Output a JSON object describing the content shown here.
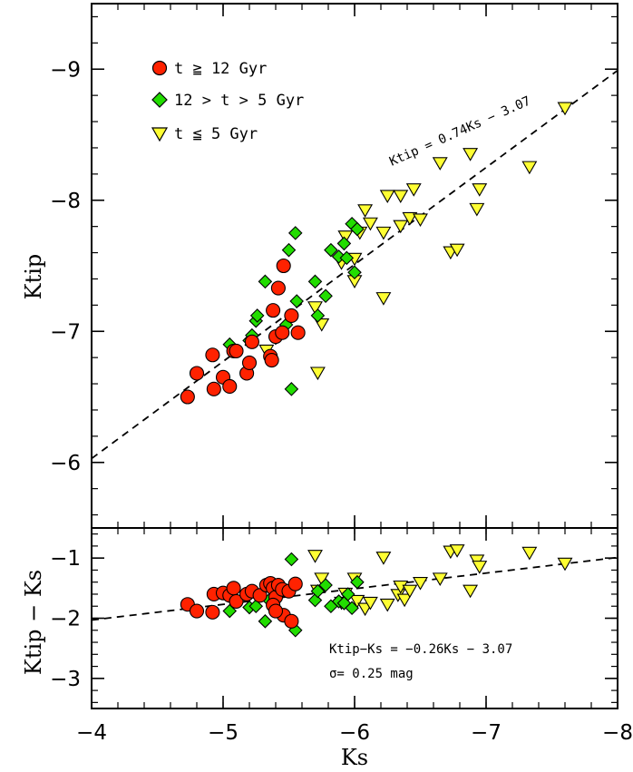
{
  "chart_data": [
    {
      "type": "scatter",
      "panel": "top",
      "xlabel": "",
      "ylabel": "Ktip",
      "xlim": [
        -4,
        -8
      ],
      "ylim": [
        -5.5,
        -9.5
      ],
      "xticks": [
        "−4",
        "−5",
        "−6",
        "−7",
        "−8"
      ],
      "yticks": [
        "−6",
        "−7",
        "−8",
        "−9"
      ],
      "ytick_values": [
        -6,
        -7,
        -8,
        -9
      ],
      "legend_position": "top-left",
      "legend": [
        {
          "label": "t ≧ 12 Gyr",
          "marker": "circle",
          "color": "#ff2200"
        },
        {
          "label": "12 > t > 5 Gyr",
          "marker": "diamond",
          "color": "#22dd00"
        },
        {
          "label": "t ≦ 5 Gyr",
          "marker": "triangle-down",
          "color": "#ffff33"
        }
      ],
      "fit_line": {
        "slope": 0.74,
        "intercept": -3.07,
        "label": "Ktip = 0.74Ks − 3.07"
      },
      "series": [
        {
          "name": "t ≧ 12 Gyr",
          "points": [
            [
              -4.73,
              -6.5
            ],
            [
              -4.8,
              -6.68
            ],
            [
              -4.92,
              -6.82
            ],
            [
              -4.93,
              -6.56
            ],
            [
              -5.0,
              -6.65
            ],
            [
              -5.05,
              -6.58
            ],
            [
              -5.08,
              -6.85
            ],
            [
              -5.1,
              -6.85
            ],
            [
              -5.18,
              -6.68
            ],
            [
              -5.2,
              -6.76
            ],
            [
              -5.22,
              -6.92
            ],
            [
              -5.36,
              -6.81
            ],
            [
              -5.37,
              -6.78
            ],
            [
              -5.38,
              -7.16
            ],
            [
              -5.4,
              -6.96
            ],
            [
              -5.42,
              -7.33
            ],
            [
              -5.45,
              -6.99
            ],
            [
              -5.46,
              -7.5
            ],
            [
              -5.52,
              -7.12
            ],
            [
              -5.57,
              -6.99
            ]
          ]
        },
        {
          "name": "12 > t > 5 Gyr",
          "points": [
            [
              -5.05,
              -6.9
            ],
            [
              -5.2,
              -6.93
            ],
            [
              -5.22,
              -6.97
            ],
            [
              -5.25,
              -7.08
            ],
            [
              -5.26,
              -7.12
            ],
            [
              -5.32,
              -7.38
            ],
            [
              -5.4,
              -6.95
            ],
            [
              -5.48,
              -7.05
            ],
            [
              -5.5,
              -7.62
            ],
            [
              -5.52,
              -6.56
            ],
            [
              -5.55,
              -7.75
            ],
            [
              -5.56,
              -7.23
            ],
            [
              -5.7,
              -7.38
            ],
            [
              -5.72,
              -7.12
            ],
            [
              -5.78,
              -7.27
            ],
            [
              -5.82,
              -7.62
            ],
            [
              -5.88,
              -7.57
            ],
            [
              -5.92,
              -7.67
            ],
            [
              -5.94,
              -7.56
            ],
            [
              -5.98,
              -7.82
            ],
            [
              -6.0,
              -7.45
            ],
            [
              -6.02,
              -7.78
            ]
          ]
        },
        {
          "name": "t ≦ 5 Gyr",
          "points": [
            [
              -5.33,
              -6.85
            ],
            [
              -5.7,
              -7.18
            ],
            [
              -5.72,
              -6.68
            ],
            [
              -5.75,
              -7.05
            ],
            [
              -5.9,
              -7.52
            ],
            [
              -5.93,
              -7.72
            ],
            [
              -6.0,
              -7.55
            ],
            [
              -6.0,
              -7.38
            ],
            [
              -6.04,
              -7.75
            ],
            [
              -6.08,
              -7.92
            ],
            [
              -6.12,
              -7.82
            ],
            [
              -6.22,
              -7.25
            ],
            [
              -6.22,
              -7.75
            ],
            [
              -6.25,
              -8.03
            ],
            [
              -6.35,
              -8.03
            ],
            [
              -6.35,
              -7.8
            ],
            [
              -6.42,
              -7.86
            ],
            [
              -6.45,
              -8.08
            ],
            [
              -6.5,
              -7.85
            ],
            [
              -6.65,
              -8.28
            ],
            [
              -6.73,
              -7.6
            ],
            [
              -6.78,
              -7.62
            ],
            [
              -6.88,
              -8.35
            ],
            [
              -6.93,
              -7.93
            ],
            [
              -6.95,
              -8.08
            ],
            [
              -7.33,
              -8.25
            ],
            [
              -7.6,
              -8.7
            ]
          ]
        }
      ]
    },
    {
      "type": "scatter",
      "panel": "bottom",
      "xlabel": "Ks",
      "ylabel": "Ktip − Ks",
      "xlim": [
        -4,
        -8
      ],
      "ylim": [
        -3.5,
        -0.5
      ],
      "xticks": [
        "−4",
        "−5",
        "−6",
        "−7",
        "−8"
      ],
      "xtick_values": [
        -4,
        -5,
        -6,
        -7,
        -8
      ],
      "yticks": [
        "−1",
        "−2",
        "−3"
      ],
      "ytick_values": [
        -1,
        -2,
        -3
      ],
      "fit_line": {
        "slope": -0.26,
        "intercept": -3.07,
        "label": "Ktip−Ks = −0.26Ks − 3.07"
      },
      "scatter_note": "σ= 0.25 mag",
      "series": [
        {
          "name": "t ≧ 12 Gyr",
          "points": [
            [
              -4.73,
              -1.77
            ],
            [
              -4.8,
              -1.88
            ],
            [
              -4.92,
              -1.9
            ],
            [
              -4.93,
              -1.6
            ],
            [
              -5.0,
              -1.58
            ],
            [
              -5.05,
              -1.62
            ],
            [
              -5.08,
              -1.5
            ],
            [
              -5.1,
              -1.72
            ],
            [
              -5.18,
              -1.6
            ],
            [
              -5.22,
              -1.55
            ],
            [
              -5.28,
              -1.62
            ],
            [
              -5.33,
              -1.45
            ],
            [
              -5.36,
              -1.42
            ],
            [
              -5.38,
              -1.5
            ],
            [
              -5.4,
              -1.65
            ],
            [
              -5.42,
              -1.45
            ],
            [
              -5.45,
              -1.52
            ],
            [
              -5.46,
              -1.95
            ],
            [
              -5.5,
              -1.55
            ],
            [
              -5.52,
              -2.05
            ],
            [
              -5.55,
              -1.43
            ],
            [
              -5.38,
              -1.78
            ],
            [
              -5.4,
              -1.88
            ]
          ]
        },
        {
          "name": "12 > t > 5 Gyr",
          "points": [
            [
              -5.05,
              -1.88
            ],
            [
              -5.2,
              -1.82
            ],
            [
              -5.25,
              -1.8
            ],
            [
              -5.32,
              -2.05
            ],
            [
              -5.35,
              -1.7
            ],
            [
              -5.52,
              -1.02
            ],
            [
              -5.55,
              -2.2
            ],
            [
              -5.7,
              -1.7
            ],
            [
              -5.72,
              -1.55
            ],
            [
              -5.78,
              -1.45
            ],
            [
              -5.82,
              -1.8
            ],
            [
              -5.88,
              -1.72
            ],
            [
              -5.92,
              -1.75
            ],
            [
              -5.95,
              -1.6
            ],
            [
              -5.98,
              -1.83
            ],
            [
              -6.02,
              -1.4
            ]
          ]
        },
        {
          "name": "t ≦ 5 Gyr",
          "points": [
            [
              -5.7,
              -0.97
            ],
            [
              -5.72,
              -1.55
            ],
            [
              -5.75,
              -1.35
            ],
            [
              -5.9,
              -1.75
            ],
            [
              -5.93,
              -1.6
            ],
            [
              -6.0,
              -1.35
            ],
            [
              -6.02,
              -1.72
            ],
            [
              -6.08,
              -1.85
            ],
            [
              -6.12,
              -1.75
            ],
            [
              -6.22,
              -1.0
            ],
            [
              -6.25,
              -1.78
            ],
            [
              -6.33,
              -1.62
            ],
            [
              -6.35,
              -1.48
            ],
            [
              -6.38,
              -1.7
            ],
            [
              -6.42,
              -1.55
            ],
            [
              -6.5,
              -1.42
            ],
            [
              -6.65,
              -1.35
            ],
            [
              -6.73,
              -0.9
            ],
            [
              -6.78,
              -0.88
            ],
            [
              -6.88,
              -1.55
            ],
            [
              -6.93,
              -1.05
            ],
            [
              -6.95,
              -1.15
            ],
            [
              -7.33,
              -0.92
            ],
            [
              -7.6,
              -1.1
            ]
          ]
        }
      ]
    }
  ],
  "colors": {
    "old": "#ff2200",
    "mid": "#22dd00",
    "young": "#ffff33",
    "axis": "#000000"
  }
}
